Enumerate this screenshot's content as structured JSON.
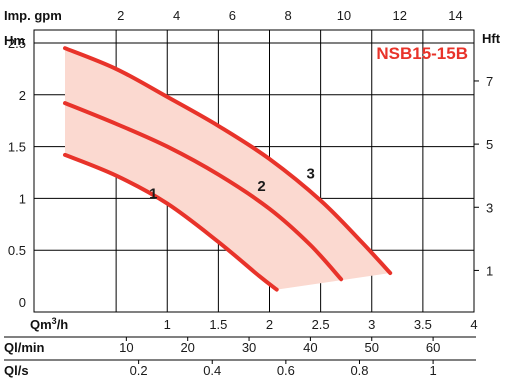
{
  "chart_data": {
    "type": "line",
    "title": "NSB15-15B",
    "grid": true,
    "colors": {
      "curve": "#e8332a",
      "band": "#fbd9d0",
      "grid": "#000000"
    },
    "primary_x": {
      "label": "Qm³/h",
      "label_base": "Qm",
      "label_sup": "3",
      "label_rest": "/h",
      "range": [
        0,
        4
      ],
      "ticks": [
        1,
        1.5,
        2,
        2.5,
        3,
        3.5,
        4
      ]
    },
    "top_x": {
      "label": "Imp. gpm",
      "ticks": [
        2,
        4,
        6,
        8,
        10,
        12,
        14
      ]
    },
    "lmin_x": {
      "label": "Ql/min",
      "ticks": [
        10,
        20,
        30,
        40,
        50,
        60
      ]
    },
    "ls_x": {
      "label": "Ql/s",
      "ticks": [
        "0.2",
        "0.4",
        "0.6",
        "0.8",
        "1"
      ]
    },
    "y_left": {
      "label": "Hm",
      "range": [
        0,
        2.6
      ],
      "ticks": [
        "0",
        "0.5",
        "1",
        "1.5",
        "2",
        "2.5"
      ]
    },
    "y_right": {
      "label": "Hft",
      "ticks": [
        1,
        3,
        5,
        7
      ]
    },
    "series": [
      {
        "name": "1",
        "x": [
          0,
          0.5,
          1,
          1.5,
          1.9,
          2.07
        ],
        "y": [
          1.42,
          1.22,
          0.95,
          0.58,
          0.25,
          0.12
        ]
      },
      {
        "name": "2",
        "x": [
          0,
          0.5,
          1,
          1.5,
          2,
          2.4,
          2.7
        ],
        "y": [
          1.92,
          1.72,
          1.5,
          1.23,
          0.9,
          0.55,
          0.22
        ]
      },
      {
        "name": "3",
        "x": [
          0,
          0.5,
          1,
          1.5,
          2,
          2.5,
          2.9,
          3.18
        ],
        "y": [
          2.45,
          2.25,
          1.98,
          1.7,
          1.38,
          0.98,
          0.58,
          0.28
        ]
      }
    ]
  }
}
